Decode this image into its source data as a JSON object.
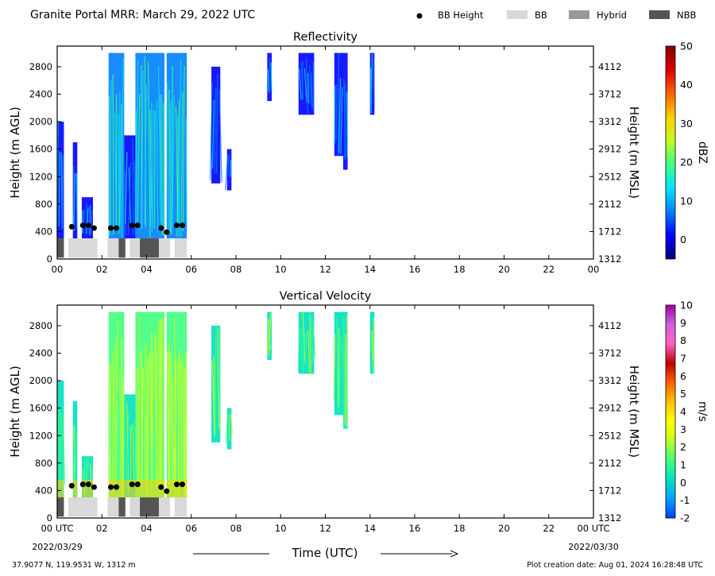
{
  "header": {
    "title": "Granite Portal MRR:  March 29, 2022 UTC",
    "legend": [
      {
        "label": "BB Height",
        "kind": "dot",
        "color": "#000000"
      },
      {
        "label": "BB",
        "kind": "swatch",
        "color": "#d9d9d9"
      },
      {
        "label": "Hybrid",
        "kind": "swatch",
        "color": "#999999"
      },
      {
        "label": "NBB",
        "kind": "swatch",
        "color": "#555555"
      }
    ]
  },
  "footer": {
    "location": "37.9077 N, 119.9531 W, 1312 m",
    "creation": "Plot creation date: Aug 01, 2024 16:28:48 UTC",
    "time_label": "Time (UTC)",
    "date_start": "2022/03/29",
    "date_end": "2022/03/30"
  },
  "chart_data": [
    {
      "type": "heatmap",
      "title": "Reflectivity",
      "ylabel": "Height (m AGL)",
      "ylabel_right": "Height (m MSL)",
      "cbar_label": "dBZ",
      "cbar_ticks": [
        "50",
        "40",
        "30",
        "20",
        "10",
        "0"
      ],
      "cbar_range": [
        -5,
        50
      ],
      "cbar_colors": [
        "#000080",
        "#0000ff",
        "#0080ff",
        "#00e5ff",
        "#40ff80",
        "#c0ff20",
        "#ffd000",
        "#ff6000",
        "#e00000",
        "#800000"
      ],
      "xlim": [
        0,
        24
      ],
      "x_ticks": [
        "00",
        "02",
        "04",
        "06",
        "08",
        "10",
        "12",
        "14",
        "16",
        "18",
        "20",
        "22",
        "00"
      ],
      "ylim": [
        0,
        3100
      ],
      "y_ticks": [
        0,
        400,
        800,
        1200,
        1600,
        2000,
        2400,
        2800
      ],
      "y_ticks_right": [
        "1312",
        "1712",
        "2112",
        "2512",
        "2912",
        "3312",
        "3712",
        "4112"
      ],
      "echo_regions": [
        {
          "x": [
            0.0,
            0.3
          ],
          "y": [
            300,
            2000
          ],
          "level": "low"
        },
        {
          "x": [
            0.7,
            0.9
          ],
          "y": [
            300,
            1700
          ],
          "level": "low"
        },
        {
          "x": [
            1.1,
            1.6
          ],
          "y": [
            300,
            900
          ],
          "level": "low"
        },
        {
          "x": [
            2.3,
            3.0
          ],
          "y": [
            300,
            3000
          ],
          "level": "mid"
        },
        {
          "x": [
            3.0,
            3.5
          ],
          "y": [
            300,
            1800
          ],
          "level": "low"
        },
        {
          "x": [
            3.5,
            4.8
          ],
          "y": [
            300,
            3000
          ],
          "level": "mid"
        },
        {
          "x": [
            4.9,
            5.8
          ],
          "y": [
            300,
            3000
          ],
          "level": "mid"
        },
        {
          "x": [
            6.9,
            7.3
          ],
          "y": [
            1100,
            2800
          ],
          "level": "low"
        },
        {
          "x": [
            7.6,
            7.8
          ],
          "y": [
            1000,
            1600
          ],
          "level": "low"
        },
        {
          "x": [
            9.4,
            9.6
          ],
          "y": [
            2300,
            3000
          ],
          "level": "low"
        },
        {
          "x": [
            10.8,
            11.5
          ],
          "y": [
            2100,
            3000
          ],
          "level": "low"
        },
        {
          "x": [
            12.4,
            12.8
          ],
          "y": [
            1500,
            3000
          ],
          "level": "low"
        },
        {
          "x": [
            12.8,
            13.0
          ],
          "y": [
            1300,
            3000
          ],
          "level": "low"
        },
        {
          "x": [
            14.0,
            14.2
          ],
          "y": [
            2100,
            3000
          ],
          "level": "low"
        }
      ],
      "bb_heights": [
        {
          "x": 0.65,
          "y": 470
        },
        {
          "x": 1.15,
          "y": 490
        },
        {
          "x": 1.4,
          "y": 490
        },
        {
          "x": 1.65,
          "y": 450
        },
        {
          "x": 2.4,
          "y": 450
        },
        {
          "x": 2.65,
          "y": 450
        },
        {
          "x": 3.35,
          "y": 490
        },
        {
          "x": 3.6,
          "y": 490
        },
        {
          "x": 4.65,
          "y": 450
        },
        {
          "x": 4.9,
          "y": 390
        },
        {
          "x": 5.35,
          "y": 490
        },
        {
          "x": 5.6,
          "y": 490
        }
      ],
      "bb_type_bar": [
        {
          "x": [
            0.0,
            0.3
          ],
          "type": "NBB"
        },
        {
          "x": [
            0.5,
            1.8
          ],
          "type": "BB"
        },
        {
          "x": [
            2.25,
            2.75
          ],
          "type": "BB"
        },
        {
          "x": [
            2.75,
            3.05
          ],
          "type": "NBB"
        },
        {
          "x": [
            3.25,
            3.7
          ],
          "type": "BB"
        },
        {
          "x": [
            3.7,
            4.55
          ],
          "type": "NBB"
        },
        {
          "x": [
            4.55,
            5.05
          ],
          "type": "BB"
        },
        {
          "x": [
            5.25,
            5.8
          ],
          "type": "BB"
        }
      ]
    },
    {
      "type": "heatmap",
      "title": "Vertical Velocity",
      "ylabel": "Height (m AGL)",
      "ylabel_right": "Height (m MSL)",
      "cbar_label": "m/s",
      "cbar_ticks": [
        "10",
        "9",
        "8",
        "7",
        "6",
        "5",
        "4",
        "3",
        "2",
        "1",
        "0",
        "-1",
        "-2"
      ],
      "cbar_range": [
        -2,
        10
      ],
      "cbar_colors": [
        "#0040ff",
        "#00a0ff",
        "#00e0c0",
        "#40ff80",
        "#c0ff20",
        "#ffff00",
        "#ffc000",
        "#ff6000",
        "#c00000",
        "#ff60c0",
        "#d060e0",
        "#a000a0"
      ],
      "xlim": [
        0,
        24
      ],
      "x_ticks": [
        "00 UTC",
        "02",
        "04",
        "06",
        "08",
        "10",
        "12",
        "14",
        "16",
        "18",
        "20",
        "22",
        "00 UTC"
      ],
      "ylim": [
        0,
        3100
      ],
      "y_ticks": [
        0,
        400,
        800,
        1200,
        1600,
        2000,
        2400,
        2800
      ],
      "y_ticks_right": [
        "1312",
        "1712",
        "2112",
        "2512",
        "2912",
        "3312",
        "3712",
        "4112"
      ],
      "echo_regions": [
        {
          "x": [
            0.0,
            0.3
          ],
          "y": [
            300,
            2000
          ],
          "level": "low"
        },
        {
          "x": [
            0.7,
            0.9
          ],
          "y": [
            300,
            1700
          ],
          "level": "low"
        },
        {
          "x": [
            1.1,
            1.6
          ],
          "y": [
            300,
            900
          ],
          "level": "low"
        },
        {
          "x": [
            2.3,
            3.0
          ],
          "y": [
            300,
            3000
          ],
          "level": "mid"
        },
        {
          "x": [
            3.0,
            3.5
          ],
          "y": [
            300,
            1800
          ],
          "level": "low"
        },
        {
          "x": [
            3.5,
            4.8
          ],
          "y": [
            300,
            3000
          ],
          "level": "mid"
        },
        {
          "x": [
            4.9,
            5.8
          ],
          "y": [
            300,
            3000
          ],
          "level": "mid"
        },
        {
          "x": [
            6.9,
            7.3
          ],
          "y": [
            1100,
            2800
          ],
          "level": "low"
        },
        {
          "x": [
            7.6,
            7.8
          ],
          "y": [
            1000,
            1600
          ],
          "level": "low"
        },
        {
          "x": [
            9.4,
            9.6
          ],
          "y": [
            2300,
            3000
          ],
          "level": "low"
        },
        {
          "x": [
            10.8,
            11.5
          ],
          "y": [
            2100,
            3000
          ],
          "level": "low"
        },
        {
          "x": [
            12.4,
            12.8
          ],
          "y": [
            1500,
            3000
          ],
          "level": "low"
        },
        {
          "x": [
            12.8,
            13.0
          ],
          "y": [
            1300,
            3000
          ],
          "level": "low"
        },
        {
          "x": [
            14.0,
            14.2
          ],
          "y": [
            2100,
            3000
          ],
          "level": "low"
        }
      ],
      "bb_heights": [
        {
          "x": 0.65,
          "y": 470
        },
        {
          "x": 1.15,
          "y": 490
        },
        {
          "x": 1.4,
          "y": 490
        },
        {
          "x": 1.65,
          "y": 450
        },
        {
          "x": 2.4,
          "y": 450
        },
        {
          "x": 2.65,
          "y": 450
        },
        {
          "x": 3.35,
          "y": 490
        },
        {
          "x": 3.6,
          "y": 490
        },
        {
          "x": 4.65,
          "y": 450
        },
        {
          "x": 4.9,
          "y": 390
        },
        {
          "x": 5.35,
          "y": 490
        },
        {
          "x": 5.6,
          "y": 490
        }
      ],
      "bb_type_bar": [
        {
          "x": [
            0.0,
            0.3
          ],
          "type": "NBB"
        },
        {
          "x": [
            0.5,
            1.8
          ],
          "type": "BB"
        },
        {
          "x": [
            2.25,
            2.75
          ],
          "type": "BB"
        },
        {
          "x": [
            2.75,
            3.05
          ],
          "type": "NBB"
        },
        {
          "x": [
            3.25,
            3.7
          ],
          "type": "BB"
        },
        {
          "x": [
            3.7,
            4.55
          ],
          "type": "NBB"
        },
        {
          "x": [
            4.55,
            5.05
          ],
          "type": "BB"
        },
        {
          "x": [
            5.25,
            5.8
          ],
          "type": "BB"
        }
      ]
    }
  ]
}
